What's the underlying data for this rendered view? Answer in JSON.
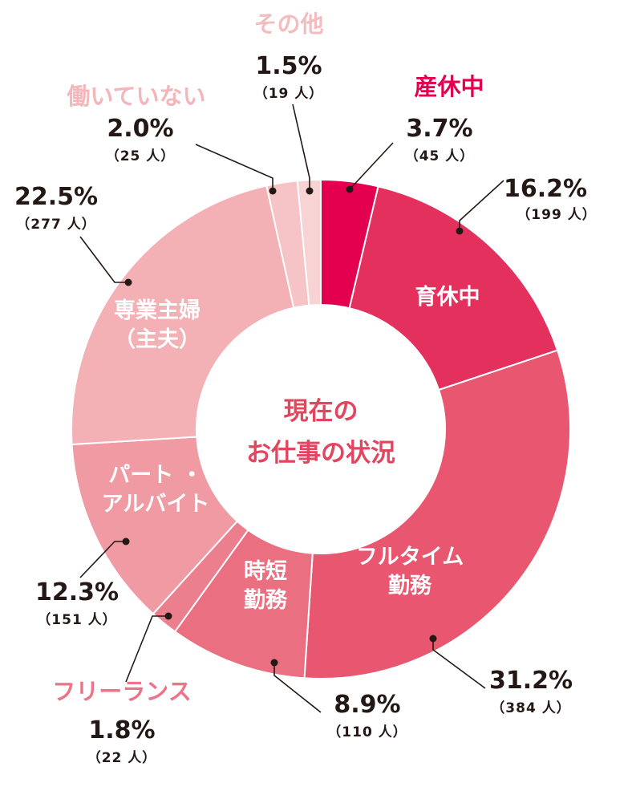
{
  "chart_data": {
    "type": "pie",
    "title": "現在のお仕事の状況",
    "donut": true,
    "slices": [
      {
        "key": "maternity",
        "name": "産休中",
        "name_lines": [],
        "pct_label": "3.7%",
        "count_label": "（45 人）",
        "value": 3.7,
        "count": 45,
        "color": "#e2004f",
        "name_color": "#e2004f"
      },
      {
        "key": "childcare",
        "name": "育休中",
        "name_lines": [
          "育休中"
        ],
        "pct_label": "16.2%",
        "count_label": "（199 人）",
        "value": 16.2,
        "count": 199,
        "color": "#e4305c",
        "name_color": "#ffffff"
      },
      {
        "key": "fulltime",
        "name": "フルタイム勤務",
        "name_lines": [
          "フルタイム",
          "勤務"
        ],
        "pct_label": "31.2%",
        "count_label": "（384 人）",
        "value": 31.2,
        "count": 384,
        "color": "#e8566f",
        "name_color": "#ffffff"
      },
      {
        "key": "shorttime",
        "name": "時短勤務",
        "name_lines": [
          "時短",
          "勤務"
        ],
        "pct_label": "8.9%",
        "count_label": "（110 人）",
        "value": 8.9,
        "count": 110,
        "color": "#ea6f81",
        "name_color": "#ffffff"
      },
      {
        "key": "freelance",
        "name": "フリーランス",
        "name_lines": [],
        "pct_label": "1.8%",
        "count_label": "（22 人）",
        "value": 1.8,
        "count": 22,
        "color": "#ec7f8e",
        "name_color": "#ec7388"
      },
      {
        "key": "parttime",
        "name": "パート・アルバイト",
        "name_lines": [
          "パート ・",
          "アルバイト"
        ],
        "pct_label": "12.3%",
        "count_label": "（151 人）",
        "value": 12.3,
        "count": 151,
        "color": "#f09aa3",
        "name_color": "#ffffff"
      },
      {
        "key": "housewife",
        "name": "専業主婦（主夫）",
        "name_lines": [
          "専業主婦",
          "（主夫）"
        ],
        "pct_label": "22.5%",
        "count_label": "（277 人）",
        "value": 22.5,
        "count": 277,
        "color": "#f3b0b5",
        "name_color": "#ffffff"
      },
      {
        "key": "notworking",
        "name": "働いていない",
        "name_lines": [],
        "pct_label": "2.0%",
        "count_label": "（25 人）",
        "value": 2.0,
        "count": 25,
        "color": "#f6c4c6",
        "name_color": "#f3b6bb"
      },
      {
        "key": "other",
        "name": "その他",
        "name_lines": [],
        "pct_label": "1.5%",
        "count_label": "（19 人）",
        "value": 1.5,
        "count": 19,
        "color": "#f8d3d4",
        "name_color": "#f3bcbf"
      }
    ]
  }
}
